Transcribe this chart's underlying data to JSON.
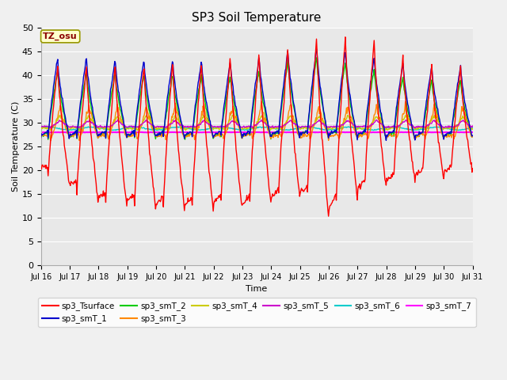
{
  "title": "SP3 Soil Temperature",
  "xlabel": "Time",
  "ylabel": "Soil Temperature (C)",
  "ylim": [
    0,
    50
  ],
  "yticks": [
    0,
    5,
    10,
    15,
    20,
    25,
    30,
    35,
    40,
    45,
    50
  ],
  "tz_label": "TZ_osu",
  "fig_facecolor": "#f0f0f0",
  "ax_facecolor": "#e8e8e8",
  "series_colors": {
    "sp3_Tsurface": "#ff0000",
    "sp3_smT_1": "#0000cc",
    "sp3_smT_2": "#00cc00",
    "sp3_smT_3": "#ff8800",
    "sp3_smT_4": "#cccc00",
    "sp3_smT_5": "#cc00cc",
    "sp3_smT_6": "#00cccc",
    "sp3_smT_7": "#ff00ff"
  },
  "legend_order": [
    "sp3_Tsurface",
    "sp3_smT_1",
    "sp3_smT_2",
    "sp3_smT_3",
    "sp3_smT_4",
    "sp3_smT_5",
    "sp3_smT_6",
    "sp3_smT_7"
  ]
}
